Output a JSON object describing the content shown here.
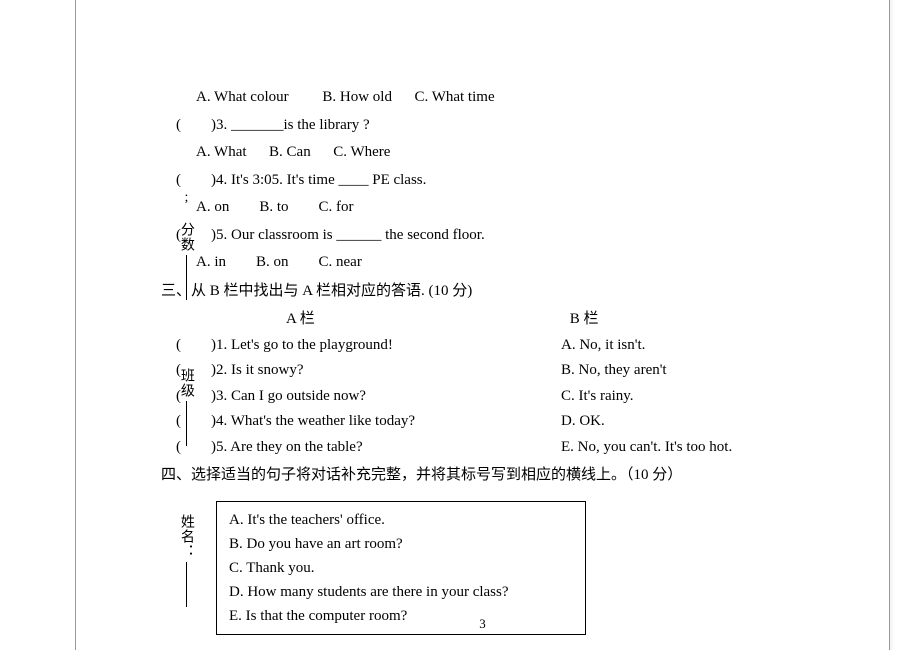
{
  "sidebar": {
    "name_label": "姓名：",
    "class_label": "班级",
    "score_label": "; 分数"
  },
  "q_prev_options": {
    "a": "A. What colour",
    "b": "B. How old",
    "c": "C. What time"
  },
  "q3": {
    "stem": "(　　)3. _______is the library ?",
    "a": "A. What",
    "b": "B. Can",
    "c": "C. Where"
  },
  "q4": {
    "stem": "(　　)4. It's 3:05. It's time  ____  PE class.",
    "a": "A. on",
    "b": "B. to",
    "c": "C. for"
  },
  "q5": {
    "stem": "(　　)5. Our classroom is  ______  the second floor.",
    "a": "A. in",
    "b": "B. on",
    "c": "C. near"
  },
  "section3": {
    "title": "三、从 B 栏中找出与 A 栏相对应的答语. (10 分)",
    "col_a": "A  栏",
    "col_b": "B 栏",
    "items": [
      {
        "left": "(　　)1. Let's go to the playground!",
        "right": "A. No, it isn't."
      },
      {
        "left": "(　　)2. Is it snowy?",
        "right": "B. No, they aren't"
      },
      {
        "left": "(　　)3. Can I go outside now?",
        "right": " C. It's rainy."
      },
      {
        "left": "(　　)4. What's the weather like today?",
        "right": " D. OK."
      },
      {
        "left": "(　　)5. Are they on the table?",
        "right": "E. No, you can't. It's too hot."
      }
    ]
  },
  "section4": {
    "title": "四、选择适当的句子将对话补充完整，并将其标号写到相应的横线上。（10 分）",
    "box": [
      "A. It's the teachers' office.",
      "B. Do you have an art room?",
      "C. Thank you.",
      "D. How many students are there in your class?",
      "E. Is that the computer room?"
    ]
  },
  "page_number": "3"
}
